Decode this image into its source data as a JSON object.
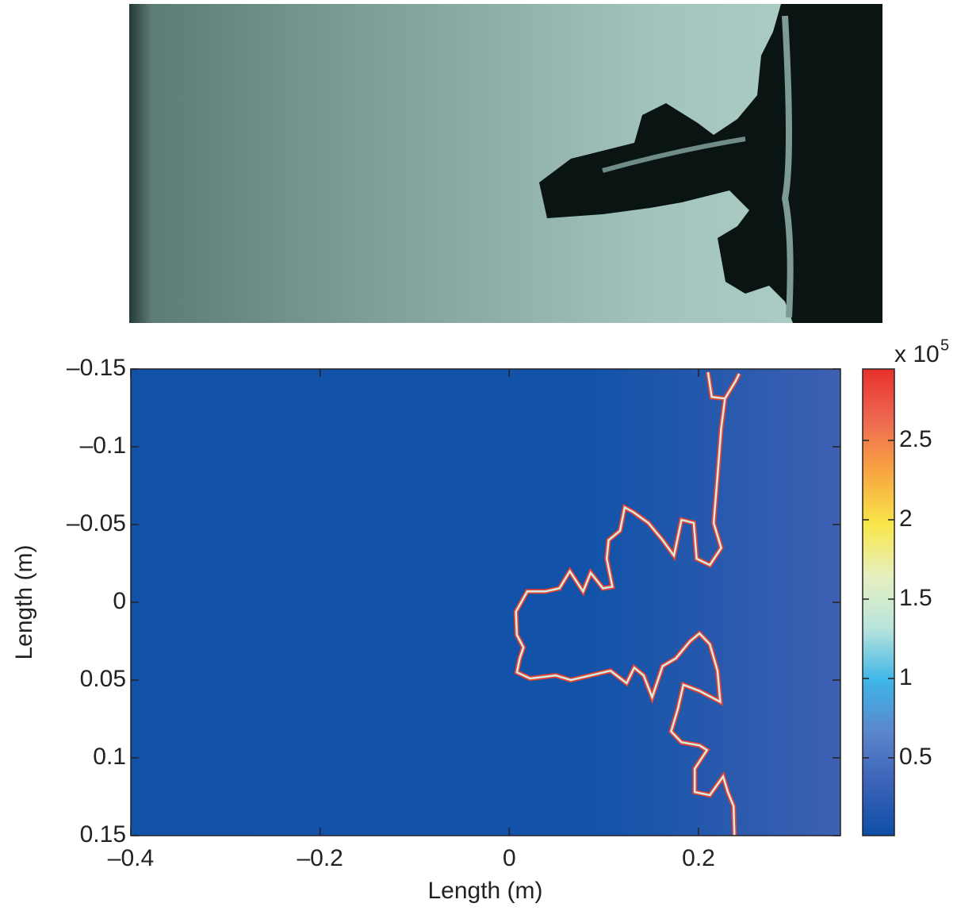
{
  "chart_data": {
    "type": "contour",
    "xlabel": "Length (m)",
    "ylabel": "Length (m)",
    "xlim": [
      -0.4,
      0.35
    ],
    "xticks": [
      {
        "value": -0.4,
        "label": "–0.4"
      },
      {
        "value": -0.2,
        "label": "–0.2"
      },
      0,
      0.2
    ],
    "ylim": [
      -0.15,
      0.15
    ],
    "y_direction": "reverse",
    "yticks": [
      {
        "value": -0.15,
        "label": "–0.15"
      },
      {
        "value": -0.1,
        "label": "–0.1"
      },
      {
        "value": -0.05,
        "label": "–0.05"
      },
      0,
      0.05,
      0.1,
      0.15
    ],
    "contour": {
      "color": "#e8412f",
      "inner_color": "#cfeee6",
      "x": [
        0.21,
        0.214,
        0.228,
        0.239,
        0.243,
        null,
        0.228,
        0.224,
        0.22,
        0.216,
        0.224,
        0.212,
        0.198,
        0.195,
        0.182,
        0.174,
        0.162,
        0.147,
        0.131,
        0.122,
        0.117,
        0.105,
        0.103,
        0.109,
        0.099,
        0.086,
        0.078,
        0.064,
        0.053,
        0.038,
        0.019,
        0.007,
        0.008,
        0.015,
        0.011,
        0.008,
        0.022,
        0.049,
        0.065,
        0.107,
        0.124,
        0.132,
        0.142,
        0.151,
        0.162,
        0.176,
        0.191,
        0.201,
        0.212,
        0.22,
        0.223,
        0.201,
        0.184,
        0.178,
        0.171,
        0.182,
        0.201,
        0.209,
        0.196,
        0.196,
        0.212,
        0.226,
        0.231,
        0.237,
        0.238
      ],
      "y": [
        -0.148,
        -0.132,
        -0.131,
        -0.142,
        -0.147,
        null,
        -0.131,
        -0.112,
        -0.081,
        -0.051,
        -0.035,
        -0.024,
        -0.028,
        -0.051,
        -0.053,
        -0.03,
        -0.04,
        -0.051,
        -0.058,
        -0.061,
        -0.046,
        -0.04,
        -0.028,
        -0.01,
        -0.009,
        -0.019,
        -0.007,
        -0.02,
        -0.009,
        -0.007,
        -0.007,
        0.006,
        0.021,
        0.029,
        0.036,
        0.045,
        0.049,
        0.047,
        0.05,
        0.044,
        0.052,
        0.042,
        0.047,
        0.061,
        0.041,
        0.036,
        0.025,
        0.02,
        0.027,
        0.044,
        0.064,
        0.057,
        0.053,
        0.069,
        0.083,
        0.09,
        0.092,
        0.095,
        0.107,
        0.122,
        0.124,
        0.112,
        0.122,
        0.131,
        0.15
      ]
    },
    "colorbar": {
      "lim": [
        0.01,
        2.95
      ],
      "ticks": [
        0.5,
        1,
        1.5,
        2,
        2.5
      ],
      "label": "x 10",
      "exponent": "5",
      "colors": [
        "#0f4ea6",
        "#3a62b8",
        "#5b86cc",
        "#3fb6e8",
        "#b8e4dc",
        "#e6f0c0",
        "#f8e64a",
        "#f7a640",
        "#ee6a52",
        "#e8302a"
      ]
    }
  }
}
